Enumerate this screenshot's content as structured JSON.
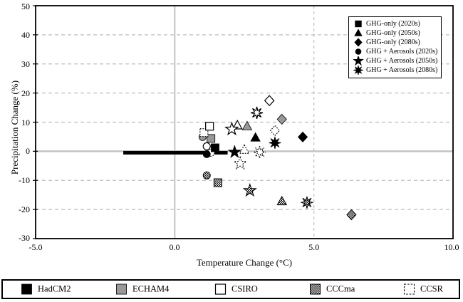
{
  "chart_data": {
    "type": "scatter",
    "title": "",
    "xlabel": "Temperature Change (°C)",
    "ylabel": "Precipitation Change (%)",
    "xlim": [
      -5,
      10
    ],
    "ylim": [
      -30,
      50
    ],
    "xticks": [
      "-5.0",
      "0.0",
      "5.0",
      "10.0"
    ],
    "xtick_values": [
      -5,
      0,
      5,
      10
    ],
    "yticks": [
      "50",
      "40",
      "30",
      "20",
      "10",
      "0",
      "-10",
      "-20",
      "-30"
    ],
    "ytick_values": [
      50,
      40,
      30,
      20,
      10,
      0,
      -10,
      -20,
      -30
    ],
    "grid": {
      "h_dashed": [
        40,
        30,
        20,
        10,
        -10,
        -20
      ],
      "v_dashed": [
        5
      ],
      "h_solid": [
        0
      ],
      "v_solid": [
        0
      ]
    },
    "scenario_legend": [
      {
        "label": "GHG-only (2020s)",
        "shape": "square"
      },
      {
        "label": "GHG-only (2050s)",
        "shape": "triangle"
      },
      {
        "label": "GHG-only (2080s)",
        "shape": "diamond"
      },
      {
        "label": "GHG + Aerosols (2020s)",
        "shape": "circle"
      },
      {
        "label": "GHG + Aerosols (2050s)",
        "shape": "star5"
      },
      {
        "label": "GHG + Aerosols (2080s)",
        "shape": "star8"
      }
    ],
    "model_legend": [
      {
        "label": "HadCM2",
        "style": "black"
      },
      {
        "label": "ECHAM4",
        "style": "gray"
      },
      {
        "label": "CSIRO",
        "style": "white"
      },
      {
        "label": "CCCma",
        "style": "checker"
      },
      {
        "label": "CCSR",
        "style": "dotted"
      }
    ],
    "style_colors": {
      "black": "#000000",
      "gray": "#999999",
      "white": "#ffffff",
      "grid": "#bdbdbd",
      "zero_line": "#c4c4c4"
    },
    "range_bar": {
      "model": "HadCM2",
      "y": -0.5,
      "x_start": -1.85,
      "x_end": 1.9
    },
    "points": [
      {
        "model": "ECHAM4",
        "style": "gray",
        "shape": "square",
        "scenario": "GHG-only (2020s)",
        "x": 1.3,
        "y": 4.4
      },
      {
        "model": "ECHAM4",
        "style": "gray",
        "shape": "triangle",
        "scenario": "GHG-only (2050s)",
        "x": 2.6,
        "y": 8.6
      },
      {
        "model": "ECHAM4",
        "style": "gray",
        "shape": "diamond",
        "scenario": "GHG-only (2080s)",
        "x": 3.85,
        "y": 11.0
      },
      {
        "model": "ECHAM4",
        "style": "gray",
        "shape": "circle",
        "scenario": "GHG + Aerosols (2020s)",
        "x": 1.0,
        "y": 4.9
      },
      {
        "model": "CCSR",
        "style": "dotted",
        "shape": "square",
        "scenario": "GHG-only (2020s)",
        "x": 1.05,
        "y": 6.4
      },
      {
        "model": "CCSR",
        "style": "dotted",
        "shape": "triangle",
        "scenario": "GHG-only (2050s)",
        "x": 2.5,
        "y": 0.5
      },
      {
        "model": "CCSR",
        "style": "dotted",
        "shape": "diamond",
        "scenario": "GHG-only (2080s)",
        "x": 3.6,
        "y": 7.1
      },
      {
        "model": "CCSR",
        "style": "dotted",
        "shape": "circle",
        "scenario": "GHG + Aerosols (2020s)",
        "x": 1.3,
        "y": -0.5
      },
      {
        "model": "CCSR",
        "style": "dotted",
        "shape": "star5",
        "scenario": "GHG + Aerosols (2050s)",
        "x": 2.35,
        "y": -4.2
      },
      {
        "model": "CCSR",
        "style": "dotted",
        "shape": "star8",
        "scenario": "GHG + Aerosols (2080s)",
        "x": 3.05,
        "y": -0.3
      },
      {
        "model": "CCCma",
        "style": "checker",
        "shape": "square",
        "scenario": "GHG-only (2020s)",
        "x": 1.55,
        "y": -10.8
      },
      {
        "model": "CCCma",
        "style": "checker",
        "shape": "triangle",
        "scenario": "GHG-only (2050s)",
        "x": 3.85,
        "y": -17.2
      },
      {
        "model": "CCCma",
        "style": "checker",
        "shape": "diamond",
        "scenario": "GHG-only (2080s)",
        "x": 6.35,
        "y": -21.8
      },
      {
        "model": "CCCma",
        "style": "checker",
        "shape": "circle",
        "scenario": "GHG + Aerosols (2020s)",
        "x": 1.15,
        "y": -8.3
      },
      {
        "model": "CCCma",
        "style": "checker",
        "shape": "star5",
        "scenario": "GHG + Aerosols (2050s)",
        "x": 2.7,
        "y": -13.5
      },
      {
        "model": "CCCma",
        "style": "checker",
        "shape": "star8",
        "scenario": "GHG + Aerosols (2080s)",
        "x": 4.75,
        "y": -17.6
      },
      {
        "model": "CSIRO",
        "style": "white",
        "shape": "square",
        "scenario": "GHG-only (2020s)",
        "x": 1.25,
        "y": 8.6
      },
      {
        "model": "CSIRO",
        "style": "white",
        "shape": "triangle",
        "scenario": "GHG-only (2050s)",
        "x": 2.25,
        "y": 8.9
      },
      {
        "model": "CSIRO",
        "style": "white",
        "shape": "diamond",
        "scenario": "GHG-only (2080s)",
        "x": 3.4,
        "y": 17.4
      },
      {
        "model": "CSIRO",
        "style": "white",
        "shape": "circle",
        "scenario": "GHG + Aerosols (2020s)",
        "x": 1.15,
        "y": 1.7
      },
      {
        "model": "CSIRO",
        "style": "white",
        "shape": "star5",
        "scenario": "GHG + Aerosols (2050s)",
        "x": 2.05,
        "y": 7.6
      },
      {
        "model": "CSIRO",
        "style": "white",
        "shape": "star8",
        "scenario": "GHG + Aerosols (2080s)",
        "x": 2.95,
        "y": 13.2
      },
      {
        "model": "HadCM2",
        "style": "black",
        "shape": "square",
        "scenario": "GHG-only (2020s)",
        "x": 1.45,
        "y": 1.2
      },
      {
        "model": "HadCM2",
        "style": "black",
        "shape": "triangle",
        "scenario": "GHG-only (2050s)",
        "x": 2.9,
        "y": 4.7
      },
      {
        "model": "HadCM2",
        "style": "black",
        "shape": "diamond",
        "scenario": "GHG-only (2080s)",
        "x": 4.6,
        "y": 4.9
      },
      {
        "model": "HadCM2",
        "style": "black",
        "shape": "circle",
        "scenario": "GHG + Aerosols (2020s)",
        "x": 1.15,
        "y": -1.0
      },
      {
        "model": "HadCM2",
        "style": "black",
        "shape": "star5",
        "scenario": "GHG + Aerosols (2050s)",
        "x": 2.15,
        "y": -0.3
      },
      {
        "model": "HadCM2",
        "style": "black",
        "shape": "star8",
        "scenario": "GHG + Aerosols (2080s)",
        "x": 3.6,
        "y": 2.9
      }
    ]
  }
}
